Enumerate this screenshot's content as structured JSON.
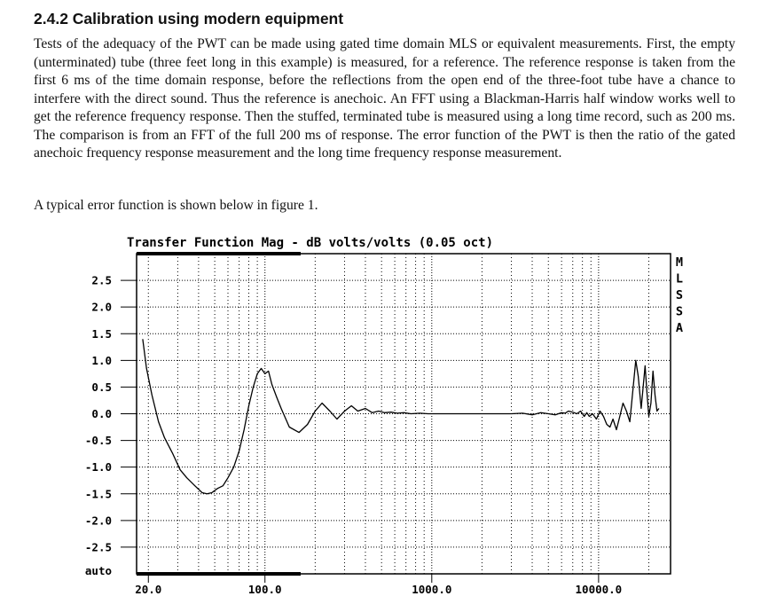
{
  "section": {
    "heading": "2.4.2 Calibration using modern equipment",
    "paragraph": "Tests of the adequacy of the PWT can be made using gated time domain MLS or equivalent measurements. First, the empty (unterminated) tube (three feet long in this example) is measured, for a reference. The reference response is taken from the first 6 ms of the time domain response, before the reflections from the open end of the three-foot tube have a chance to interfere with the direct sound. Thus the reference is anechoic. An FFT using a Blackman-Harris half window works well to get the reference frequency response. Then the stuffed, terminated tube is measured using a long time record, such as 200 ms. The comparison is from an FFT of the full 200 ms of response. The error function of the PWT is then the ratio of the gated anechoic frequency response measurement and the long time frequency response measurement.",
    "figure_intro": "A typical error function is shown below in figure 1."
  },
  "chart_data": {
    "type": "line",
    "title": "Transfer Function Mag - dB volts/volts (0.05 oct)",
    "side_label": [
      "M",
      "L",
      "S",
      "S",
      "A"
    ],
    "x_scale": "log",
    "xlim": [
      17,
      27000
    ],
    "ylim": [
      -3.0,
      3.0
    ],
    "x_tick_labels": [
      "20.0",
      "100.0",
      "1000.0",
      "10000.0"
    ],
    "x_ticks": [
      20,
      100,
      1000,
      10000
    ],
    "y_ticks": [
      2.5,
      2.0,
      1.5,
      1.0,
      0.5,
      0.0,
      -0.5,
      -1.0,
      -1.5,
      -2.0,
      -2.5
    ],
    "y_tick_labels": [
      "2.5",
      "2.0",
      "1.5",
      "1.0",
      "0.5",
      "0.0",
      "-0.5",
      "-1.0",
      "-1.5",
      "-2.0",
      "-2.5"
    ],
    "y_bottom_label": "auto",
    "grid": true,
    "legend": "none",
    "colors": {
      "line": "#000000",
      "grid": "#000000",
      "background": "#ffffff"
    },
    "series": [
      {
        "x": [
          18.5,
          19.5,
          21,
          23,
          25,
          28,
          31,
          34,
          38,
          42,
          45,
          48,
          52,
          56,
          60,
          65,
          70,
          75,
          80,
          85,
          90,
          95,
          100,
          105,
          110,
          118,
          125,
          140,
          160,
          180,
          200,
          220,
          245,
          270,
          300,
          330,
          360,
          400,
          440,
          480,
          520,
          570,
          620,
          680,
          750,
          850,
          950,
          1000,
          1050,
          1200,
          1500,
          2000,
          2500,
          3000,
          3500,
          4000,
          4500,
          5000,
          5500,
          6000,
          6300,
          6600,
          7000,
          7400,
          7800,
          8200,
          8500,
          8800,
          9200,
          9700,
          10200,
          10700,
          11200,
          11700,
          12200,
          12800,
          13400,
          14000,
          14700,
          15400,
          16000,
          16700,
          17300,
          18000,
          18500,
          19000,
          19500,
          20000,
          20600,
          21200,
          21800,
          22400,
          23000
        ],
        "y": [
          1.4,
          0.85,
          0.35,
          -0.15,
          -0.45,
          -0.75,
          -1.05,
          -1.2,
          -1.35,
          -1.48,
          -1.5,
          -1.48,
          -1.4,
          -1.35,
          -1.2,
          -1.0,
          -0.7,
          -0.3,
          0.15,
          0.5,
          0.75,
          0.85,
          0.75,
          0.8,
          0.55,
          0.3,
          0.1,
          -0.25,
          -0.35,
          -0.2,
          0.05,
          0.2,
          0.05,
          -0.1,
          0.05,
          0.15,
          0.05,
          0.1,
          0.02,
          0.05,
          0.02,
          0.03,
          0.01,
          0.02,
          0.0,
          0.01,
          0.0,
          0.0,
          0.0,
          0.0,
          0.0,
          0.0,
          0.0,
          0.0,
          0.01,
          -0.02,
          0.02,
          0.0,
          -0.02,
          0.02,
          0.01,
          0.05,
          0.03,
          0.0,
          0.05,
          -0.05,
          0.02,
          -0.05,
          0.0,
          -0.1,
          0.05,
          -0.05,
          -0.2,
          -0.25,
          -0.1,
          -0.3,
          -0.05,
          0.2,
          0.05,
          -0.15,
          0.4,
          1.0,
          0.7,
          0.1,
          0.5,
          0.9,
          0.4,
          -0.05,
          0.2,
          0.8,
          0.35,
          0.05,
          0.1
        ]
      }
    ]
  }
}
